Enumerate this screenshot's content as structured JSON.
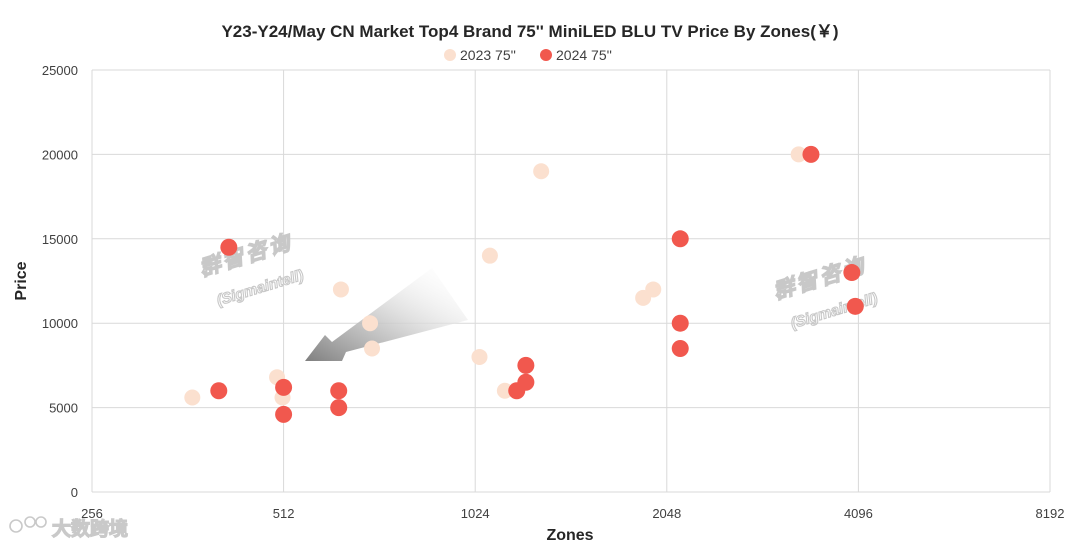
{
  "chart_data": {
    "type": "scatter",
    "title": "Y23-Y24/May CN Market Top4 Brand 75'' MiniLED BLU TV Price By Zones(￥)",
    "xlabel": "Zones",
    "ylabel": "Price",
    "xscale": "log2",
    "xlim": [
      256,
      8192
    ],
    "ylim": [
      0,
      25000
    ],
    "xticks": [
      "256",
      "512",
      "1024",
      "2048",
      "4096",
      "8192"
    ],
    "yticks": [
      "0",
      "5000",
      "10000",
      "15000",
      "20000",
      "25000"
    ],
    "grid": true,
    "legend_position": "top",
    "series": [
      {
        "name": "2023  75''",
        "color": "#fbe0cf",
        "points": [
          {
            "x": 368,
            "y": 5600
          },
          {
            "x": 500,
            "y": 6800
          },
          {
            "x": 510,
            "y": 5600
          },
          {
            "x": 630,
            "y": 12000
          },
          {
            "x": 700,
            "y": 10000
          },
          {
            "x": 705,
            "y": 8500
          },
          {
            "x": 1040,
            "y": 8000
          },
          {
            "x": 1080,
            "y": 14000
          },
          {
            "x": 1140,
            "y": 6000
          },
          {
            "x": 1300,
            "y": 19000
          },
          {
            "x": 1880,
            "y": 11500
          },
          {
            "x": 1950,
            "y": 12000
          },
          {
            "x": 3300,
            "y": 20000
          }
        ]
      },
      {
        "name": "2024  75''",
        "color": "#f1584e",
        "points": [
          {
            "x": 405,
            "y": 6000
          },
          {
            "x": 420,
            "y": 14500
          },
          {
            "x": 512,
            "y": 6200
          },
          {
            "x": 512,
            "y": 4600
          },
          {
            "x": 625,
            "y": 6000
          },
          {
            "x": 625,
            "y": 5000
          },
          {
            "x": 1190,
            "y": 6000
          },
          {
            "x": 1230,
            "y": 7500
          },
          {
            "x": 1230,
            "y": 6500
          },
          {
            "x": 2150,
            "y": 15000
          },
          {
            "x": 2150,
            "y": 10000
          },
          {
            "x": 2150,
            "y": 8500
          },
          {
            "x": 3450,
            "y": 20000
          },
          {
            "x": 4000,
            "y": 13000
          },
          {
            "x": 4050,
            "y": 11000
          }
        ]
      }
    ]
  },
  "watermarks": {
    "brand_cn": "群智咨询",
    "brand_en": "(Sigmaintell)",
    "footer_text": "大数跨境"
  }
}
